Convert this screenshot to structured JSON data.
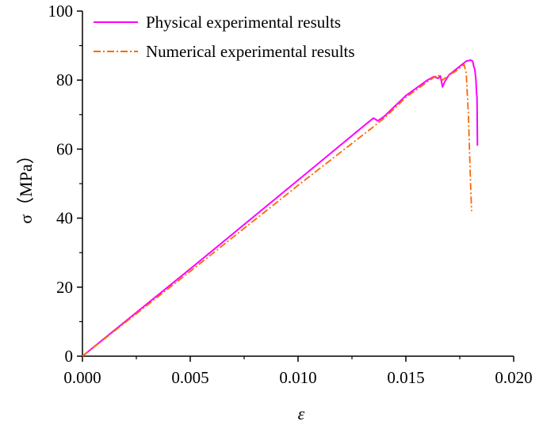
{
  "chart_data": {
    "type": "line",
    "title": "",
    "xlabel": "ε",
    "ylabel": "σ（MPa）",
    "xlim": [
      0.0,
      0.02
    ],
    "ylim": [
      0,
      100
    ],
    "xticks": [
      "0.000",
      "0.005",
      "0.010",
      "0.015",
      "0.020"
    ],
    "yticks": [
      "0",
      "20",
      "40",
      "60",
      "80",
      "100"
    ],
    "grid": false,
    "legend": "top-left",
    "series": [
      {
        "name": "Physical experimental results",
        "color": "#ff00ff",
        "style": "solid",
        "x": [
          0.0,
          0.005,
          0.01,
          0.0132,
          0.0135,
          0.0137,
          0.014,
          0.015,
          0.016,
          0.0163,
          0.0165,
          0.0166,
          0.0167,
          0.0168,
          0.017,
          0.0175,
          0.0178,
          0.018,
          0.0181,
          0.01815,
          0.0182,
          0.01825,
          0.01828,
          0.0183,
          0.01832
        ],
        "y": [
          0,
          25.3,
          51.0,
          67.5,
          69.0,
          68.2,
          69.5,
          75.5,
          80.0,
          81.0,
          80.5,
          81.2,
          78.0,
          79.5,
          81.5,
          84.0,
          85.5,
          85.8,
          85.5,
          84.0,
          83.0,
          80.0,
          76.0,
          75.0,
          61.0
        ]
      },
      {
        "name": "Numerical experimental results",
        "color": "#ff6600",
        "style": "dashdot",
        "x": [
          0.0,
          0.005,
          0.01,
          0.0135,
          0.014,
          0.015,
          0.016,
          0.0163,
          0.0165,
          0.0167,
          0.017,
          0.0173,
          0.0175,
          0.0177,
          0.0178,
          0.0179,
          0.01795,
          0.018,
          0.01805
        ],
        "y": [
          0,
          24.6,
          49.5,
          66.5,
          69.0,
          75.0,
          79.5,
          80.8,
          81.5,
          80.0,
          81.5,
          82.5,
          83.5,
          84.5,
          82.0,
          70.0,
          60.0,
          50.0,
          42.0
        ]
      }
    ]
  }
}
